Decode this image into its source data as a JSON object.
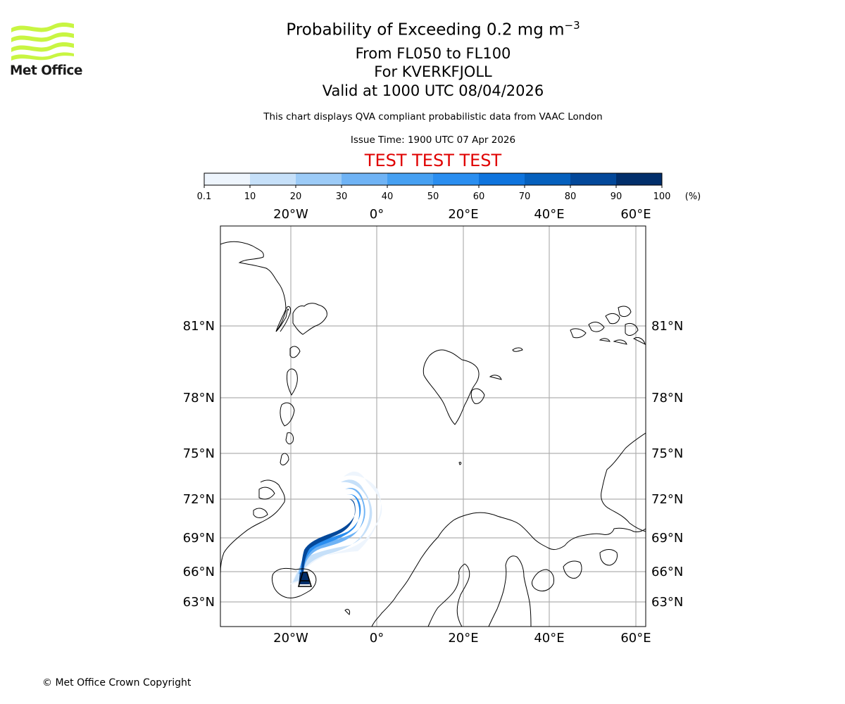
{
  "logo": {
    "text": "Met Office",
    "wave_color": "#c8f542"
  },
  "header": {
    "title_main": "Probability of Exceeding 0.2 mg m",
    "title_superscript": "−3",
    "flight_levels": "From FL050 to FL100",
    "volcano": "For KVERKFJOLL",
    "valid_time": "Valid at 1000 UTC 08/04/2026",
    "source_note": "This chart displays QVA compliant probabilistic data from VAAC London",
    "issue_time": "Issue Time: 1900 UTC 07 Apr 2026",
    "test_banner": "TEST TEST TEST",
    "test_banner_color": "#e00000"
  },
  "colorbar": {
    "unit": "(%)",
    "tick_labels": [
      "0.1",
      "10",
      "20",
      "30",
      "40",
      "50",
      "60",
      "70",
      "80",
      "90",
      "100"
    ],
    "colors": [
      "#eef5fd",
      "#c6e0f9",
      "#9ccbf7",
      "#6fb3f5",
      "#46a0f2",
      "#2a8ef0",
      "#0f74dd",
      "#0560bd",
      "#03489a",
      "#022f6b"
    ]
  },
  "map": {
    "lon_labels": [
      "20°W",
      "0°",
      "20°E",
      "40°E",
      "60°E"
    ],
    "lat_labels": [
      "81°N",
      "78°N",
      "75°N",
      "72°N",
      "69°N",
      "66°N",
      "63°N"
    ],
    "gridline_color": "#b0b0b0"
  },
  "footer": {
    "copyright": "© Met Office Crown Copyright"
  }
}
